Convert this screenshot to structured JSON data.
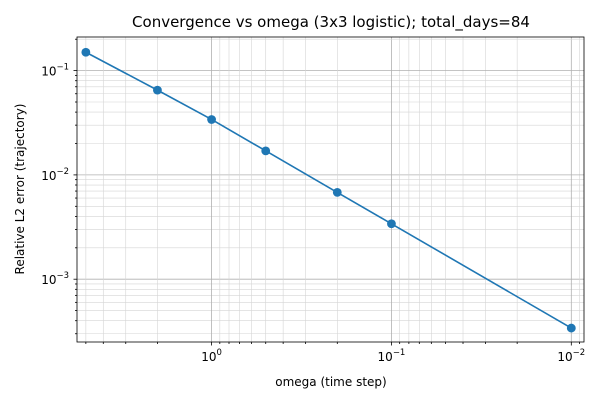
{
  "chart_data": {
    "type": "line",
    "title": "Convergence vs omega (3x3 logistic); total_days=84",
    "xlabel": "omega (time step)",
    "ylabel": "Relative L2 error (trajectory)",
    "x_scale": "log",
    "y_scale": "log",
    "x_axis_inverted": true,
    "xlim": [
      5.6,
      0.0085
    ],
    "ylim": [
      0.00025,
      0.21
    ],
    "grid": "both (major and minor)",
    "color": "#1f77b4",
    "x_ticks": [
      {
        "value": 1,
        "base": "10",
        "exp": "0"
      },
      {
        "value": 0.1,
        "base": "10",
        "exp": "−1"
      },
      {
        "value": 0.01,
        "base": "10",
        "exp": "−2"
      }
    ],
    "y_ticks": [
      {
        "value": 0.1,
        "base": "10",
        "exp": "−1"
      },
      {
        "value": 0.01,
        "base": "10",
        "exp": "−2"
      },
      {
        "value": 0.001,
        "base": "10",
        "exp": "−3"
      }
    ],
    "series": [
      {
        "points": [
          {
            "x": 5,
            "y": 0.15
          },
          {
            "x": 2,
            "y": 0.065
          },
          {
            "x": 1,
            "y": 0.034
          },
          {
            "x": 0.5,
            "y": 0.017
          },
          {
            "x": 0.2,
            "y": 0.0068
          },
          {
            "x": 0.1,
            "y": 0.0034
          },
          {
            "x": 0.01,
            "y": 0.00034
          }
        ]
      }
    ]
  }
}
